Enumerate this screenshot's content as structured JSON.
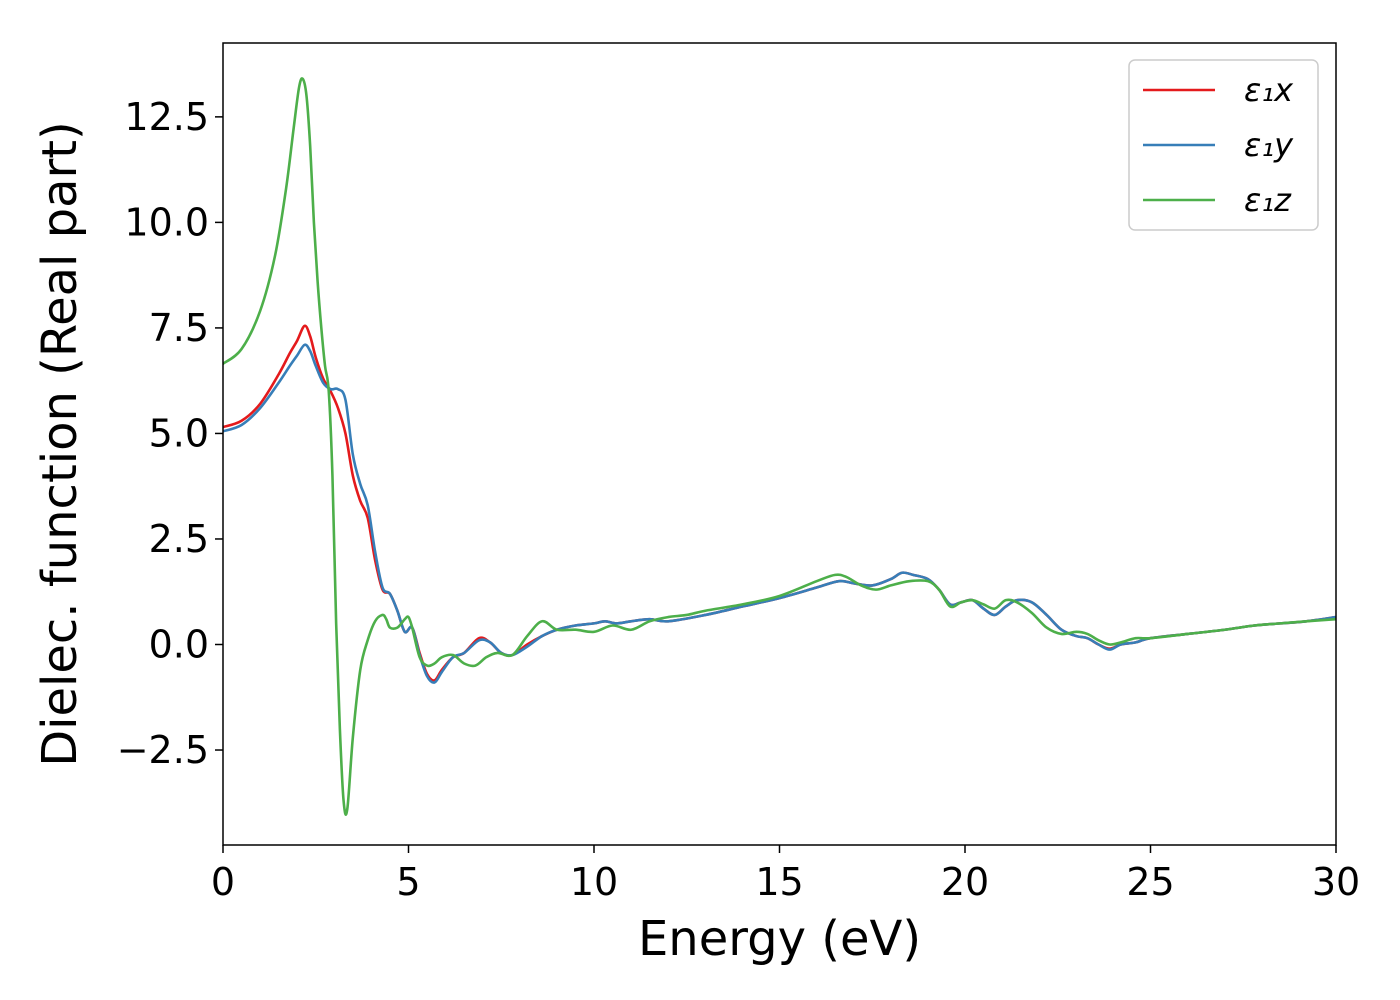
{
  "chart_data": {
    "type": "line",
    "title": "",
    "xlabel": "Energy (eV)",
    "ylabel": "Dielec. function (Real part)",
    "xlim": [
      0,
      30
    ],
    "ylim": [
      -4.75,
      14.25
    ],
    "xticks": [
      0,
      5,
      10,
      15,
      20,
      25,
      30
    ],
    "xtick_labels": [
      "0",
      "5",
      "10",
      "15",
      "20",
      "25",
      "30"
    ],
    "yticks": [
      -2.5,
      0,
      2.5,
      5,
      7.5,
      10,
      12.5
    ],
    "ytick_labels": [
      "−2.5",
      "0.0",
      "2.5",
      "5.0",
      "7.5",
      "10.0",
      "12.5"
    ],
    "grid": false,
    "legend_position": "top-right",
    "series": [
      {
        "name": "ε₁x",
        "color": "#e41a1c",
        "x": [
          0,
          0.5,
          1.0,
          1.5,
          1.8,
          2.0,
          2.2,
          2.35,
          2.5,
          2.7,
          2.9,
          3.1,
          3.3,
          3.5,
          3.7,
          3.9,
          4.1,
          4.3,
          4.5,
          4.7,
          4.9,
          5.1,
          5.3,
          5.5,
          5.7,
          5.9,
          6.2,
          6.5,
          6.9,
          7.2,
          7.5,
          7.8,
          8.2,
          8.6,
          9.0,
          9.5,
          10.0,
          10.3,
          10.6,
          11.0,
          11.5,
          12.0,
          13.0,
          14.0,
          15.0,
          16.0,
          16.6,
          17.0,
          17.5,
          18.0,
          18.3,
          18.6,
          19.0,
          19.3,
          19.6,
          19.9,
          20.2,
          20.5,
          20.8,
          21.1,
          21.4,
          21.8,
          22.2,
          22.6,
          23.0,
          23.3,
          23.6,
          23.9,
          24.2,
          24.6,
          25.0,
          26.0,
          27.0,
          27.8,
          28.5,
          29.2,
          30.0
        ],
        "y": [
          5.15,
          5.3,
          5.7,
          6.4,
          6.9,
          7.2,
          7.55,
          7.3,
          6.8,
          6.3,
          6.0,
          5.6,
          5.0,
          4.0,
          3.4,
          3.0,
          2.0,
          1.3,
          1.2,
          0.8,
          0.3,
          0.4,
          -0.2,
          -0.7,
          -0.85,
          -0.6,
          -0.3,
          -0.2,
          0.15,
          0.05,
          -0.2,
          -0.25,
          0.0,
          0.2,
          0.35,
          0.45,
          0.5,
          0.55,
          0.5,
          0.55,
          0.6,
          0.55,
          0.7,
          0.9,
          1.1,
          1.35,
          1.5,
          1.45,
          1.4,
          1.55,
          1.7,
          1.65,
          1.55,
          1.3,
          0.95,
          1.0,
          1.05,
          0.85,
          0.7,
          0.9,
          1.05,
          1.0,
          0.7,
          0.35,
          0.2,
          0.15,
          0.0,
          -0.1,
          0.0,
          0.05,
          0.15,
          0.25,
          0.35,
          0.45,
          0.5,
          0.55,
          0.65
        ]
      },
      {
        "name": "ε₁y",
        "color": "#377eb8",
        "x": [
          0,
          0.5,
          1.0,
          1.5,
          1.8,
          2.0,
          2.2,
          2.35,
          2.5,
          2.7,
          2.9,
          3.1,
          3.3,
          3.5,
          3.7,
          3.9,
          4.1,
          4.3,
          4.5,
          4.7,
          4.9,
          5.1,
          5.3,
          5.5,
          5.7,
          5.9,
          6.2,
          6.5,
          6.9,
          7.2,
          7.5,
          7.8,
          8.2,
          8.6,
          9.0,
          9.5,
          10.0,
          10.3,
          10.6,
          11.0,
          11.5,
          12.0,
          13.0,
          14.0,
          15.0,
          16.0,
          16.6,
          17.0,
          17.5,
          18.0,
          18.3,
          18.6,
          19.0,
          19.3,
          19.6,
          19.9,
          20.2,
          20.5,
          20.8,
          21.1,
          21.4,
          21.8,
          22.2,
          22.6,
          23.0,
          23.3,
          23.6,
          23.9,
          24.2,
          24.6,
          25.0,
          26.0,
          27.0,
          27.8,
          28.5,
          29.2,
          30.0
        ],
        "y": [
          5.05,
          5.2,
          5.6,
          6.2,
          6.6,
          6.85,
          7.1,
          6.95,
          6.6,
          6.2,
          6.05,
          6.05,
          5.8,
          4.5,
          3.8,
          3.3,
          2.2,
          1.35,
          1.2,
          0.8,
          0.3,
          0.4,
          -0.25,
          -0.75,
          -0.9,
          -0.65,
          -0.3,
          -0.2,
          0.1,
          0.05,
          -0.2,
          -0.25,
          -0.05,
          0.2,
          0.35,
          0.45,
          0.5,
          0.55,
          0.5,
          0.55,
          0.6,
          0.55,
          0.7,
          0.9,
          1.1,
          1.35,
          1.5,
          1.45,
          1.4,
          1.55,
          1.7,
          1.65,
          1.55,
          1.3,
          0.95,
          1.0,
          1.05,
          0.85,
          0.7,
          0.9,
          1.05,
          1.0,
          0.7,
          0.35,
          0.2,
          0.15,
          0.0,
          -0.12,
          0.0,
          0.05,
          0.15,
          0.25,
          0.35,
          0.45,
          0.5,
          0.55,
          0.65
        ]
      },
      {
        "name": "ε₁z",
        "color": "#4daf4a",
        "x": [
          0,
          0.5,
          1.0,
          1.4,
          1.7,
          1.9,
          2.05,
          2.15,
          2.25,
          2.35,
          2.45,
          2.55,
          2.65,
          2.75,
          2.85,
          2.95,
          3.05,
          3.15,
          3.25,
          3.35,
          3.5,
          3.7,
          3.9,
          4.1,
          4.3,
          4.4,
          4.5,
          4.7,
          4.9,
          5.0,
          5.1,
          5.3,
          5.5,
          5.7,
          5.9,
          6.2,
          6.5,
          6.8,
          7.1,
          7.4,
          7.8,
          8.2,
          8.6,
          9.0,
          9.5,
          10.0,
          10.5,
          11.0,
          11.5,
          12.0,
          12.5,
          13.0,
          14.0,
          15.0,
          16.0,
          16.5,
          16.8,
          17.2,
          17.6,
          18.0,
          18.5,
          19.0,
          19.3,
          19.6,
          19.9,
          20.2,
          20.5,
          20.8,
          21.1,
          21.4,
          21.8,
          22.2,
          22.6,
          23.0,
          23.3,
          23.6,
          23.9,
          24.2,
          24.6,
          25.0,
          26.0,
          27.0,
          27.8,
          28.5,
          29.2,
          30.0
        ],
        "y": [
          6.65,
          7.0,
          7.9,
          9.2,
          10.8,
          12.2,
          13.2,
          13.4,
          13.0,
          11.8,
          10.0,
          8.6,
          7.5,
          6.6,
          6.0,
          4.0,
          0.5,
          -2.0,
          -3.7,
          -3.9,
          -2.2,
          -0.6,
          0.1,
          0.55,
          0.7,
          0.6,
          0.4,
          0.4,
          0.6,
          0.65,
          0.4,
          -0.3,
          -0.5,
          -0.45,
          -0.3,
          -0.25,
          -0.45,
          -0.5,
          -0.3,
          -0.2,
          -0.25,
          0.2,
          0.55,
          0.35,
          0.35,
          0.3,
          0.45,
          0.35,
          0.55,
          0.65,
          0.7,
          0.8,
          0.95,
          1.15,
          1.5,
          1.65,
          1.6,
          1.4,
          1.3,
          1.4,
          1.5,
          1.5,
          1.3,
          0.9,
          1.0,
          1.05,
          0.95,
          0.85,
          1.05,
          1.0,
          0.75,
          0.4,
          0.25,
          0.3,
          0.25,
          0.1,
          0.0,
          0.05,
          0.15,
          0.15,
          0.25,
          0.35,
          0.45,
          0.5,
          0.55,
          0.6
        ]
      }
    ]
  }
}
